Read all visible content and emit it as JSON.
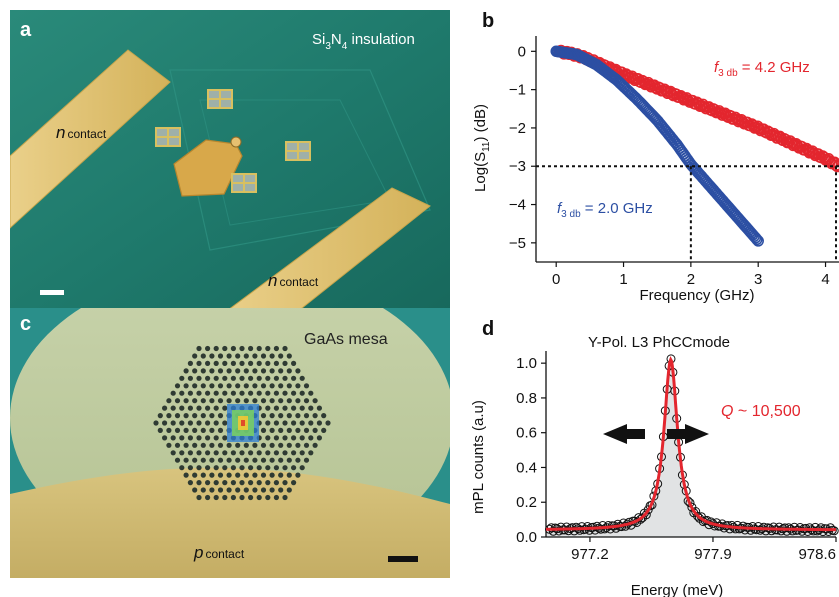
{
  "panels": {
    "a": {
      "label": "a",
      "title_main": "Si",
      "title_sub3": "3",
      "title_n": "N",
      "title_sub4": "4",
      "title_rest": " insulation",
      "contact_left_n": "n",
      "contact_left_word": "contact",
      "contact_right_n": "n",
      "contact_right_word": "contact"
    },
    "c": {
      "label": "c",
      "mesa_text": "GaAs mesa",
      "contact_p": "p",
      "contact_word": "contact"
    },
    "b": {
      "label": "b"
    },
    "d": {
      "label": "d"
    }
  },
  "colors": {
    "red_series": "#e3262e",
    "blue_series": "#2c4fa3",
    "fit_red": "#e3262e",
    "substrate_green": "#1f7a6c",
    "gold": "#e1c26a",
    "mesa": "#b8c89a"
  },
  "chart_data": [
    {
      "type": "scatter",
      "panel": "b",
      "xlabel": "Frequency (GHz)",
      "ylabel_prefix": "Log(S",
      "ylabel_sub": "11",
      "ylabel_suffix": ") (dB)",
      "xlim": [
        -0.3,
        4.2
      ],
      "ylim": [
        -5.5,
        0.4
      ],
      "x_ticks": [
        0,
        1,
        2,
        3,
        4
      ],
      "y_ticks": [
        0,
        -1,
        -2,
        -3,
        -4,
        -5
      ],
      "reference_line_y": -3,
      "reference_lines_x": [
        2.0,
        4.2
      ],
      "series": [
        {
          "name": "4.2 GHz device",
          "label_f": "f",
          "label_sub": "3 db",
          "label_val": " = 4.2 GHz",
          "x_start": 0.05,
          "x_end": 4.2,
          "points": [
            [
              0.0,
              0.0
            ],
            [
              0.2,
              -0.05
            ],
            [
              0.4,
              -0.15
            ],
            [
              0.6,
              -0.3
            ],
            [
              0.8,
              -0.45
            ],
            [
              1.0,
              -0.6
            ],
            [
              1.5,
              -0.95
            ],
            [
              2.0,
              -1.3
            ],
            [
              2.5,
              -1.65
            ],
            [
              3.0,
              -2.0
            ],
            [
              3.5,
              -2.4
            ],
            [
              4.0,
              -2.8
            ],
            [
              4.2,
              -3.0
            ]
          ]
        },
        {
          "name": "2.0 GHz device",
          "label_f": "f",
          "label_sub": "3 db",
          "label_val": " = 2.0 GHz",
          "x_start": 0.0,
          "x_end": 3.0,
          "points": [
            [
              0.0,
              0.0
            ],
            [
              0.3,
              -0.08
            ],
            [
              0.6,
              -0.35
            ],
            [
              0.9,
              -0.75
            ],
            [
              1.2,
              -1.25
            ],
            [
              1.5,
              -1.8
            ],
            [
              1.8,
              -2.45
            ],
            [
              2.0,
              -2.95
            ],
            [
              2.3,
              -3.55
            ],
            [
              2.6,
              -4.15
            ],
            [
              2.8,
              -4.55
            ],
            [
              3.0,
              -4.95
            ]
          ]
        }
      ]
    },
    {
      "type": "line",
      "panel": "d",
      "title": "Y-Pol. L3 PhCCmode",
      "xlabel": "Energy (meV)",
      "ylabel": "mPL counts (a.u)",
      "xlim": [
        976.95,
        978.6
      ],
      "ylim": [
        0.0,
        1.07
      ],
      "x_ticks": [
        977.2,
        977.9,
        978.6
      ],
      "y_ticks": [
        0.0,
        0.2,
        0.4,
        0.6,
        0.8,
        1.0
      ],
      "peak_center": 977.66,
      "peak_fwhm": 0.093,
      "peak_height": 1.02,
      "baseline": 0.04,
      "annotation_prefix": "Q",
      "annotation_value": " ~ 10,500"
    }
  ]
}
